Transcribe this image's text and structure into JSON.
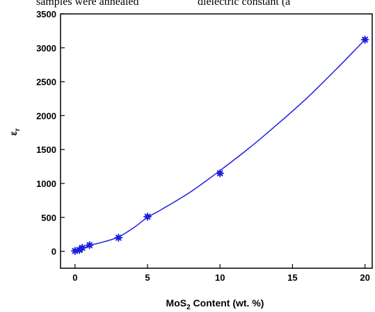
{
  "caption": {
    "left": "samples were annealed",
    "right": "dielectric constant (a"
  },
  "chart_data": {
    "type": "line",
    "xlabel": {
      "main": "MoS",
      "sub": "2",
      "rest": " Content (wt. %)"
    },
    "ylabel": {
      "main": "ε",
      "sub": "r"
    },
    "xlim": [
      -1,
      20.5
    ],
    "ylim": [
      -250,
      3500
    ],
    "x_ticks": [
      0,
      5,
      10,
      15,
      20
    ],
    "y_ticks": [
      0,
      500,
      1000,
      1500,
      2000,
      2500,
      3000,
      3500
    ],
    "series": [
      {
        "color": "#1f1fe0",
        "marker": "star",
        "points": [
          {
            "x": 0,
            "y": 5
          },
          {
            "x": 0.3,
            "y": 20
          },
          {
            "x": 0.5,
            "y": 50
          },
          {
            "x": 1,
            "y": 90
          },
          {
            "x": 3,
            "y": 200
          },
          {
            "x": 5,
            "y": 510
          },
          {
            "x": 10,
            "y": 1150
          },
          {
            "x": 20,
            "y": 3120
          }
        ],
        "curve": [
          {
            "x": 0,
            "y": 5
          },
          {
            "x": 0.3,
            "y": 22
          },
          {
            "x": 0.6,
            "y": 45
          },
          {
            "x": 1,
            "y": 85
          },
          {
            "x": 2,
            "y": 140
          },
          {
            "x": 3,
            "y": 210
          },
          {
            "x": 4,
            "y": 340
          },
          {
            "x": 5,
            "y": 500
          },
          {
            "x": 6,
            "y": 620
          },
          {
            "x": 8,
            "y": 880
          },
          {
            "x": 10,
            "y": 1190
          },
          {
            "x": 12,
            "y": 1520
          },
          {
            "x": 14,
            "y": 1880
          },
          {
            "x": 16,
            "y": 2260
          },
          {
            "x": 18,
            "y": 2680
          },
          {
            "x": 20,
            "y": 3120
          }
        ]
      }
    ]
  }
}
